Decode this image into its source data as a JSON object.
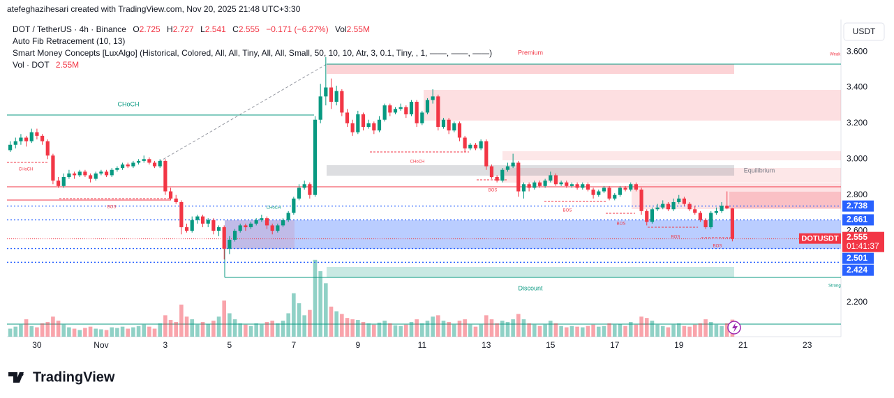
{
  "header": {
    "creator": "atefeghazihesari created with TradingView.com, Nov 20, 2025 21:48 UTC+3:30",
    "currency": "USDT",
    "brand": "TradingView"
  },
  "chart_data": {
    "type": "candlestick",
    "title": "DOT / TetherUS · 4h · Binance",
    "legend": {
      "o": "O",
      "h": "H",
      "l": "L",
      "c": "C",
      "change": "−0.171 (−6.27%)",
      "vol": "Vol · DOT",
      "vol_value": "2.55M"
    },
    "indicators": [
      "Auto Fib Retracement (10, 13)",
      "Smart Money Concepts [LuxAlgo] (Historical, Colored, All, All, Tiny, All, All, Small, 50, 10, 10, Atr, 3, 0.1, Tiny, , 1, ——, ——, ——)"
    ],
    "up_color": "#089981",
    "down_color": "#f23645",
    "level_color": "#2962ff",
    "grid": false,
    "xlim": [
      -0.6,
      155.3
    ],
    "xticks": [
      {
        "value": 5,
        "label": "30"
      },
      {
        "value": 17,
        "label": "Nov"
      },
      {
        "value": 29,
        "label": "3"
      },
      {
        "value": 41,
        "label": "5"
      },
      {
        "value": 53,
        "label": "7"
      },
      {
        "value": 65,
        "label": "9"
      },
      {
        "value": 77,
        "label": "11"
      },
      {
        "value": 89,
        "label": "13"
      },
      {
        "value": 101,
        "label": "15"
      },
      {
        "value": 113,
        "label": "17"
      },
      {
        "value": 125,
        "label": "19"
      },
      {
        "value": 137,
        "label": "21"
      },
      {
        "value": 149,
        "label": "23"
      }
    ],
    "ylim": [
      2.009,
      3.647
    ],
    "yticks": [
      {
        "value": 3.6,
        "label": "3.600"
      },
      {
        "value": 3.4,
        "label": "3.400"
      },
      {
        "value": 3.2,
        "label": "3.200"
      },
      {
        "value": 3.0,
        "label": "3.000"
      },
      {
        "value": 2.8,
        "label": "2.800"
      },
      {
        "value": 2.6,
        "label": "2.600"
      },
      {
        "value": 2.2,
        "label": "2.200"
      }
    ],
    "levels": [
      2.738,
      2.661,
      2.501,
      2.424
    ],
    "last_symbol": "DOTUSDT",
    "countdown": "01:41:37",
    "annotations": [
      "Premium",
      "Equilibrium",
      "Discount",
      "Weak",
      "Strong",
      "CHoCH",
      "CHoCH",
      "BOS",
      "CHoCH",
      "CHoCH",
      "BOS",
      "BOS",
      "BOS",
      "BOS",
      "BOS"
    ],
    "volume_ylim": [
      0,
      12
    ],
    "candles": [
      [
        3.05,
        3.1,
        3.04,
        3.08
      ],
      [
        3.08,
        3.12,
        3.06,
        3.1
      ],
      [
        3.1,
        3.14,
        3.08,
        3.12
      ],
      [
        3.12,
        3.13,
        3.07,
        3.1
      ],
      [
        3.1,
        3.17,
        3.09,
        3.15
      ],
      [
        3.15,
        3.17,
        3.11,
        3.13
      ],
      [
        3.13,
        3.14,
        3.08,
        3.1
      ],
      [
        3.1,
        3.11,
        3.0,
        3.02
      ],
      [
        3.02,
        3.03,
        2.86,
        2.88
      ],
      [
        2.88,
        2.9,
        2.84,
        2.85
      ],
      [
        2.85,
        2.92,
        2.84,
        2.9
      ],
      [
        2.9,
        2.94,
        2.89,
        2.92
      ],
      [
        2.92,
        2.93,
        2.89,
        2.91
      ],
      [
        2.91,
        2.94,
        2.9,
        2.93
      ],
      [
        2.93,
        2.94,
        2.9,
        2.91
      ],
      [
        2.91,
        2.92,
        2.87,
        2.89
      ],
      [
        2.89,
        2.93,
        2.88,
        2.92
      ],
      [
        2.92,
        2.94,
        2.91,
        2.93
      ],
      [
        2.93,
        2.94,
        2.9,
        2.91
      ],
      [
        2.91,
        2.95,
        2.9,
        2.94
      ],
      [
        2.94,
        2.96,
        2.93,
        2.95
      ],
      [
        2.95,
        2.98,
        2.94,
        2.97
      ],
      [
        2.97,
        2.98,
        2.95,
        2.96
      ],
      [
        2.96,
        2.99,
        2.95,
        2.98
      ],
      [
        2.98,
        3.0,
        2.97,
        2.99
      ],
      [
        2.99,
        3.02,
        2.98,
        3.0
      ],
      [
        3.0,
        3.01,
        2.97,
        2.98
      ],
      [
        2.98,
        2.99,
        2.95,
        2.96
      ],
      [
        2.96,
        3.0,
        2.95,
        2.99
      ],
      [
        2.99,
        3.0,
        2.8,
        2.82
      ],
      [
        2.82,
        2.84,
        2.77,
        2.78
      ],
      [
        2.78,
        2.8,
        2.75,
        2.76
      ],
      [
        2.76,
        2.77,
        2.58,
        2.62
      ],
      [
        2.62,
        2.64,
        2.59,
        2.6
      ],
      [
        2.6,
        2.68,
        2.59,
        2.66
      ],
      [
        2.66,
        2.69,
        2.64,
        2.68
      ],
      [
        2.68,
        2.69,
        2.62,
        2.64
      ],
      [
        2.64,
        2.67,
        2.62,
        2.66
      ],
      [
        2.66,
        2.67,
        2.58,
        2.6
      ],
      [
        2.6,
        2.63,
        2.57,
        2.62
      ],
      [
        2.62,
        2.63,
        2.44,
        2.5
      ],
      [
        2.5,
        2.57,
        2.47,
        2.55
      ],
      [
        2.55,
        2.61,
        2.54,
        2.6
      ],
      [
        2.6,
        2.64,
        2.59,
        2.63
      ],
      [
        2.63,
        2.64,
        2.6,
        2.62
      ],
      [
        2.62,
        2.65,
        2.61,
        2.64
      ],
      [
        2.64,
        2.67,
        2.63,
        2.66
      ],
      [
        2.66,
        2.69,
        2.65,
        2.67
      ],
      [
        2.67,
        2.68,
        2.61,
        2.63
      ],
      [
        2.63,
        2.64,
        2.58,
        2.6
      ],
      [
        2.6,
        2.64,
        2.59,
        2.63
      ],
      [
        2.63,
        2.67,
        2.62,
        2.66
      ],
      [
        2.66,
        2.71,
        2.65,
        2.7
      ],
      [
        2.7,
        2.79,
        2.69,
        2.78
      ],
      [
        2.78,
        2.86,
        2.77,
        2.84
      ],
      [
        2.84,
        2.88,
        2.83,
        2.86
      ],
      [
        2.86,
        2.87,
        2.78,
        2.8
      ],
      [
        2.8,
        3.24,
        2.79,
        3.22
      ],
      [
        3.22,
        3.42,
        3.2,
        3.35
      ],
      [
        3.35,
        3.57,
        3.3,
        3.4
      ],
      [
        3.4,
        3.45,
        3.28,
        3.32
      ],
      [
        3.32,
        3.41,
        3.3,
        3.38
      ],
      [
        3.38,
        3.39,
        3.24,
        3.26
      ],
      [
        3.26,
        3.28,
        3.18,
        3.2
      ],
      [
        3.2,
        3.22,
        3.13,
        3.15
      ],
      [
        3.15,
        3.27,
        3.14,
        3.25
      ],
      [
        3.25,
        3.26,
        3.16,
        3.18
      ],
      [
        3.18,
        3.22,
        3.17,
        3.2
      ],
      [
        3.2,
        3.21,
        3.14,
        3.16
      ],
      [
        3.16,
        3.24,
        3.15,
        3.22
      ],
      [
        3.22,
        3.31,
        3.21,
        3.3
      ],
      [
        3.3,
        3.31,
        3.24,
        3.26
      ],
      [
        3.26,
        3.29,
        3.25,
        3.28
      ],
      [
        3.28,
        3.31,
        3.27,
        3.29
      ],
      [
        3.29,
        3.3,
        3.23,
        3.25
      ],
      [
        3.25,
        3.33,
        3.24,
        3.32
      ],
      [
        3.32,
        3.33,
        3.18,
        3.2
      ],
      [
        3.2,
        3.27,
        3.19,
        3.26
      ],
      [
        3.26,
        3.34,
        3.25,
        3.33
      ],
      [
        3.33,
        3.39,
        3.31,
        3.35
      ],
      [
        3.35,
        3.36,
        3.16,
        3.18
      ],
      [
        3.18,
        3.23,
        3.17,
        3.22
      ],
      [
        3.22,
        3.23,
        3.14,
        3.16
      ],
      [
        3.16,
        3.21,
        3.15,
        3.2
      ],
      [
        3.2,
        3.21,
        3.1,
        3.12
      ],
      [
        3.12,
        3.13,
        3.04,
        3.06
      ],
      [
        3.06,
        3.09,
        3.05,
        3.08
      ],
      [
        3.08,
        3.09,
        3.05,
        3.06
      ],
      [
        3.06,
        3.11,
        3.05,
        3.1
      ],
      [
        3.1,
        3.11,
        2.94,
        2.96
      ],
      [
        2.96,
        2.97,
        2.89,
        2.9
      ],
      [
        2.9,
        2.91,
        2.87,
        2.88
      ],
      [
        2.88,
        2.95,
        2.87,
        2.94
      ],
      [
        2.94,
        2.98,
        2.93,
        2.96
      ],
      [
        2.96,
        3.03,
        2.95,
        2.98
      ],
      [
        2.98,
        2.99,
        2.79,
        2.82
      ],
      [
        2.82,
        2.87,
        2.78,
        2.86
      ],
      [
        2.86,
        2.87,
        2.82,
        2.84
      ],
      [
        2.84,
        2.88,
        2.83,
        2.87
      ],
      [
        2.87,
        2.88,
        2.84,
        2.85
      ],
      [
        2.85,
        2.89,
        2.84,
        2.88
      ],
      [
        2.88,
        2.93,
        2.87,
        2.91
      ],
      [
        2.91,
        2.92,
        2.85,
        2.86
      ],
      [
        2.86,
        2.88,
        2.85,
        2.87
      ],
      [
        2.87,
        2.88,
        2.84,
        2.85
      ],
      [
        2.85,
        2.87,
        2.84,
        2.86
      ],
      [
        2.86,
        2.87,
        2.83,
        2.84
      ],
      [
        2.84,
        2.87,
        2.83,
        2.86
      ],
      [
        2.86,
        2.87,
        2.82,
        2.83
      ],
      [
        2.83,
        2.84,
        2.78,
        2.8
      ],
      [
        2.8,
        2.83,
        2.79,
        2.82
      ],
      [
        2.82,
        2.85,
        2.81,
        2.84
      ],
      [
        2.84,
        2.85,
        2.77,
        2.78
      ],
      [
        2.78,
        2.81,
        2.77,
        2.8
      ],
      [
        2.8,
        2.85,
        2.79,
        2.84
      ],
      [
        2.84,
        2.85,
        2.82,
        2.83
      ],
      [
        2.83,
        2.87,
        2.82,
        2.86
      ],
      [
        2.86,
        2.87,
        2.82,
        2.83
      ],
      [
        2.83,
        2.84,
        2.69,
        2.71
      ],
      [
        2.71,
        2.72,
        2.63,
        2.65
      ],
      [
        2.65,
        2.73,
        2.64,
        2.72
      ],
      [
        2.72,
        2.75,
        2.71,
        2.73
      ],
      [
        2.73,
        2.77,
        2.72,
        2.75
      ],
      [
        2.75,
        2.76,
        2.71,
        2.72
      ],
      [
        2.72,
        2.78,
        2.71,
        2.76
      ],
      [
        2.76,
        2.8,
        2.75,
        2.78
      ],
      [
        2.78,
        2.79,
        2.74,
        2.75
      ],
      [
        2.75,
        2.76,
        2.71,
        2.72
      ],
      [
        2.72,
        2.74,
        2.69,
        2.7
      ],
      [
        2.7,
        2.71,
        2.65,
        2.66
      ],
      [
        2.66,
        2.67,
        2.61,
        2.62
      ],
      [
        2.62,
        2.71,
        2.61,
        2.7
      ],
      [
        2.7,
        2.73,
        2.69,
        2.71
      ],
      [
        2.71,
        2.76,
        2.7,
        2.74
      ],
      [
        2.74,
        2.82,
        2.72,
        2.725
      ],
      [
        2.725,
        2.727,
        2.541,
        2.555
      ]
    ],
    "volume": [
      1.2,
      1.5,
      1.8,
      2.6,
      1.6,
      1.4,
      2.0,
      2.2,
      3.0,
      2.4,
      1.8,
      1.4,
      1.2,
      1.0,
      1.3,
      1.5,
      1.2,
      1.1,
      1.0,
      1.4,
      1.3,
      1.5,
      1.2,
      1.4,
      1.6,
      1.8,
      1.5,
      1.2,
      2.0,
      3.2,
      2.5,
      2.2,
      4.8,
      3.0,
      2.6,
      1.8,
      2.2,
      1.9,
      2.4,
      3.0,
      5.4,
      3.5,
      2.6,
      2.0,
      1.8,
      1.6,
      2.0,
      1.8,
      2.2,
      2.4,
      2.0,
      2.4,
      3.5,
      6.5,
      5.0,
      3.2,
      4.0,
      11.5,
      9.8,
      8.0,
      4.5,
      3.8,
      3.4,
      2.8,
      2.6,
      2.5,
      2.2,
      2.0,
      1.8,
      2.1,
      2.4,
      2.0,
      1.7,
      1.6,
      1.8,
      2.2,
      2.6,
      2.0,
      2.4,
      3.0,
      3.2,
      2.4,
      2.2,
      1.8,
      2.4,
      2.6,
      1.8,
      1.5,
      1.8,
      3.2,
      2.6,
      2.0,
      2.4,
      2.2,
      2.6,
      3.4,
      2.6,
      2.0,
      1.8,
      1.6,
      1.8,
      2.4,
      2.0,
      1.6,
      1.4,
      1.6,
      1.5,
      1.4,
      1.6,
      1.8,
      1.5,
      1.6,
      2.0,
      1.8,
      1.9,
      1.6,
      2.2,
      1.8,
      3.0,
      2.8,
      2.4,
      1.8,
      1.6,
      1.4,
      1.8,
      2.0,
      1.6,
      1.5,
      1.8,
      2.0,
      2.6,
      2.2,
      1.8,
      1.6,
      2.0,
      2.55
    ]
  }
}
